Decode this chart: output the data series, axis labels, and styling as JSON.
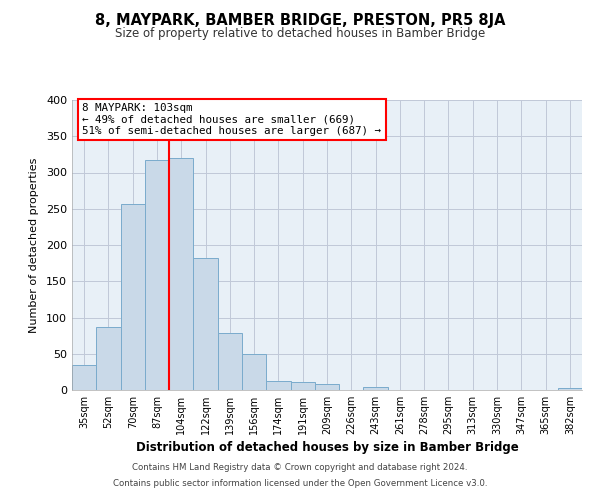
{
  "title": "8, MAYPARK, BAMBER BRIDGE, PRESTON, PR5 8JA",
  "subtitle": "Size of property relative to detached houses in Bamber Bridge",
  "xlabel": "Distribution of detached houses by size in Bamber Bridge",
  "ylabel": "Number of detached properties",
  "bar_labels": [
    "35sqm",
    "52sqm",
    "70sqm",
    "87sqm",
    "104sqm",
    "122sqm",
    "139sqm",
    "156sqm",
    "174sqm",
    "191sqm",
    "209sqm",
    "226sqm",
    "243sqm",
    "261sqm",
    "278sqm",
    "295sqm",
    "313sqm",
    "330sqm",
    "347sqm",
    "365sqm",
    "382sqm"
  ],
  "bar_heights": [
    35,
    87,
    257,
    317,
    320,
    182,
    79,
    50,
    13,
    11,
    8,
    0,
    4,
    0,
    0,
    0,
    0,
    0,
    0,
    0,
    3
  ],
  "bar_color": "#c9d9e8",
  "bar_edgecolor": "#7aabcc",
  "vline_x": 4,
  "vline_color": "red",
  "ylim": [
    0,
    400
  ],
  "yticks": [
    0,
    50,
    100,
    150,
    200,
    250,
    300,
    350,
    400
  ],
  "annotation_title": "8 MAYPARK: 103sqm",
  "annotation_line1": "← 49% of detached houses are smaller (669)",
  "annotation_line2": "51% of semi-detached houses are larger (687) →",
  "annotation_box_color": "white",
  "annotation_box_edgecolor": "red",
  "footer_line1": "Contains HM Land Registry data © Crown copyright and database right 2024.",
  "footer_line2": "Contains public sector information licensed under the Open Government Licence v3.0.",
  "background_color": "#e8f0f7",
  "plot_background": "white",
  "grid_color": "#c0c8d8"
}
